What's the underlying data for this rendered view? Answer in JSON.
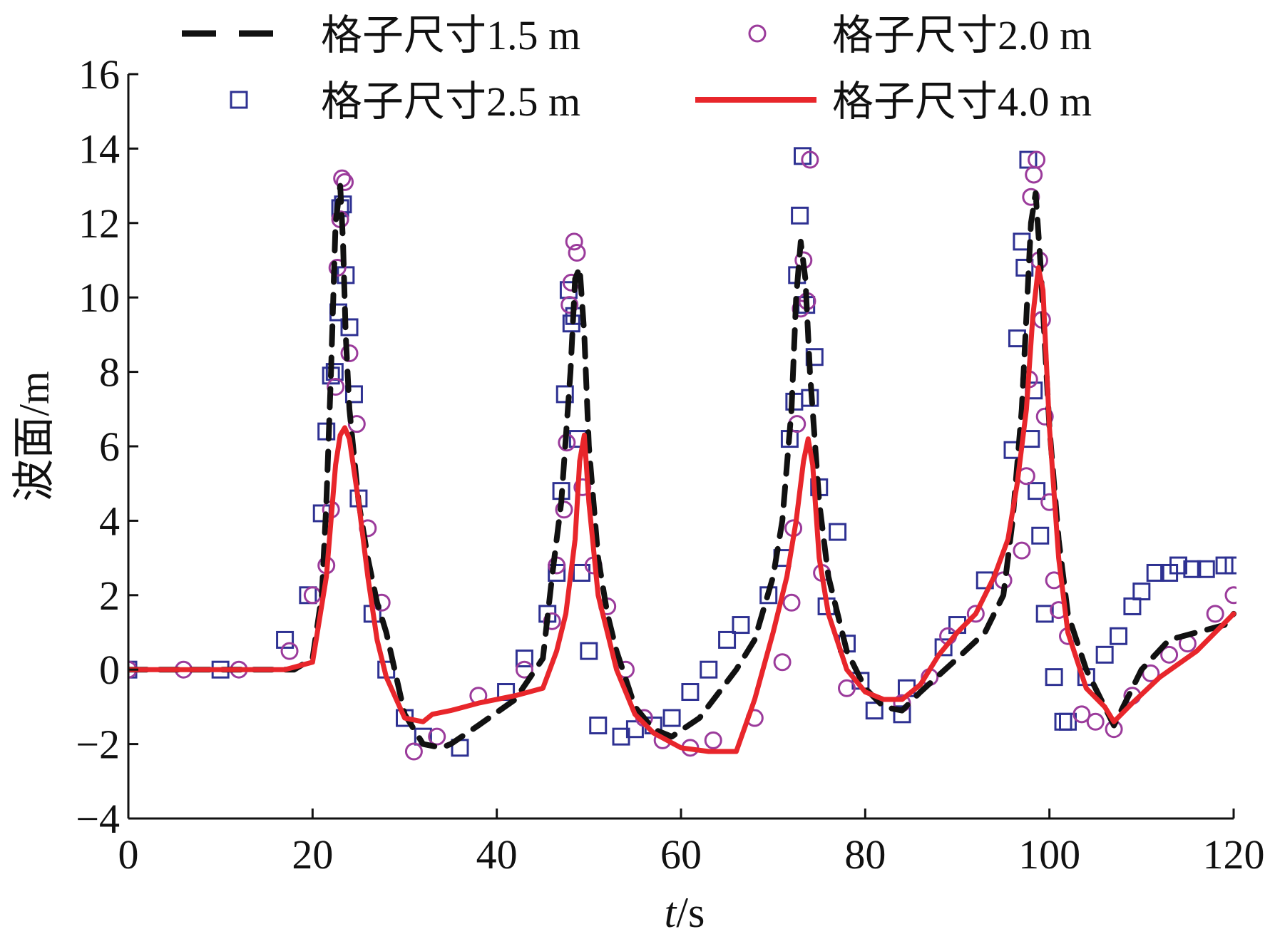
{
  "chart_data": {
    "type": "line",
    "xlabel": "t/s",
    "ylabel": "波面/m",
    "xlim": [
      0,
      120
    ],
    "ylim": [
      -4,
      16
    ],
    "xticks": [
      0,
      20,
      40,
      60,
      80,
      100,
      120
    ],
    "yticks": [
      -4,
      -2,
      0,
      2,
      4,
      6,
      8,
      10,
      12,
      14,
      16
    ],
    "legend": "top",
    "grid": false,
    "series": [
      {
        "name": "格子尺寸1.5 m",
        "style": "dashed",
        "color": "#111111",
        "x": [
          0,
          10,
          18,
          20,
          21,
          21.5,
          22,
          22.5,
          23,
          23.3,
          23.6,
          24,
          25,
          26,
          27,
          28,
          30,
          32,
          34,
          35,
          38,
          42,
          45,
          46,
          47,
          48,
          48.5,
          49,
          49.5,
          50,
          51,
          52,
          53,
          55,
          57,
          59,
          62,
          66,
          68,
          70,
          71,
          72,
          72.5,
          73,
          73.5,
          74,
          75,
          76,
          78,
          80,
          82,
          84,
          86,
          90,
          93,
          95,
          96,
          97,
          97.5,
          98,
          98.5,
          99,
          100,
          101,
          102,
          104,
          107,
          110,
          113,
          116,
          119,
          120
        ],
        "y": [
          0,
          0,
          0,
          0.3,
          2.0,
          4.5,
          8.0,
          12.0,
          13.0,
          11.5,
          9.0,
          7.0,
          4.5,
          3.0,
          1.8,
          1.0,
          -1.2,
          -2.0,
          -2.1,
          -2.0,
          -1.5,
          -0.8,
          0.3,
          2.5,
          4.5,
          8.0,
          10.5,
          10.8,
          9.0,
          6.0,
          3.0,
          1.5,
          0.5,
          -1.0,
          -1.6,
          -1.8,
          -1.3,
          0,
          0.8,
          2.5,
          4.0,
          7.0,
          10.0,
          11.5,
          10.5,
          8.0,
          4.5,
          2.5,
          0.5,
          -0.5,
          -1.0,
          -1.1,
          -0.6,
          0.3,
          1.0,
          2.0,
          4.0,
          7.0,
          9.5,
          12.0,
          12.8,
          11.0,
          6.5,
          3.5,
          1.5,
          0,
          -1.5,
          0,
          0.8,
          1.0,
          1.2,
          1.5
        ]
      },
      {
        "name": "格子尺寸2.0 m",
        "style": "markers",
        "marker": "circle",
        "color": "#9b3b9b",
        "x": [
          0,
          6,
          12,
          17.5,
          20,
          21.5,
          22,
          22.5,
          22.7,
          23,
          23.2,
          23.5,
          24,
          24.8,
          26,
          27.5,
          31,
          33.5,
          38,
          43,
          46,
          46.5,
          47.3,
          47.6,
          47.9,
          48.1,
          48.4,
          48.7,
          49.3,
          50.5,
          52,
          54,
          56,
          58,
          61,
          63.5,
          68,
          71,
          72,
          72.2,
          72.6,
          73,
          73.3,
          73.7,
          74,
          75.3,
          78,
          84,
          87,
          89,
          92,
          95,
          97,
          97.5,
          97.8,
          98,
          98.3,
          98.6,
          98.9,
          99.2,
          99.5,
          100,
          100.5,
          101,
          102,
          103.5,
          105,
          107,
          109,
          111,
          113,
          115,
          118,
          120
        ],
        "y": [
          0,
          0,
          0,
          0.5,
          2.0,
          2.8,
          4.3,
          7.6,
          10.8,
          12.1,
          13.2,
          13.1,
          8.5,
          6.6,
          3.8,
          1.8,
          -2.2,
          -1.8,
          -0.7,
          0,
          1.3,
          2.8,
          4.3,
          6.1,
          9.8,
          10.4,
          11.5,
          11.2,
          4.9,
          2.8,
          1.7,
          0,
          -1.3,
          -1.9,
          -2.1,
          -1.9,
          -1.3,
          0.2,
          1.8,
          3.8,
          6.6,
          9.7,
          11.0,
          9.9,
          13.7,
          2.6,
          -0.5,
          -0.9,
          -0.2,
          0.9,
          1.5,
          2.4,
          3.2,
          5.2,
          7.8,
          12.7,
          13.3,
          13.7,
          11.0,
          9.4,
          6.8,
          4.5,
          2.4,
          1.6,
          0.9,
          -1.2,
          -1.4,
          -1.6,
          -0.7,
          -0.1,
          0.4,
          0.7,
          1.5,
          2.0
        ]
      },
      {
        "name": "格子尺寸2.5 m",
        "style": "markers",
        "marker": "square",
        "color": "#2e3192",
        "x": [
          0,
          10,
          17,
          19.5,
          21,
          21.5,
          22,
          22.4,
          22.8,
          23,
          23.3,
          23.6,
          24,
          24.5,
          25,
          26.5,
          28,
          30,
          32,
          36,
          41,
          43,
          45.5,
          46.5,
          47,
          47.4,
          47.8,
          48.1,
          48.4,
          48.8,
          49.2,
          50,
          51,
          53.5,
          55,
          57,
          59,
          61,
          63,
          65,
          66.5,
          69.5,
          71,
          71.8,
          72.3,
          72.6,
          72.9,
          73.2,
          73.6,
          74,
          74.5,
          75,
          75.8,
          77,
          78,
          79.5,
          81,
          84,
          84.5,
          88.5,
          90,
          93,
          96,
          96.5,
          97,
          97.3,
          97.7,
          98,
          98.3,
          98.6,
          99,
          99.5,
          100.5,
          101.5,
          102,
          104,
          106,
          107.5,
          109,
          110,
          111.5,
          113,
          114,
          115.5,
          117,
          119,
          120
        ],
        "y": [
          0,
          0,
          0.8,
          2.0,
          4.2,
          6.4,
          7.9,
          8.0,
          9.6,
          12.4,
          12.5,
          10.6,
          9.2,
          7.4,
          4.6,
          1.5,
          0,
          -1.3,
          -1.8,
          -2.1,
          -0.6,
          0.3,
          1.5,
          2.6,
          4.8,
          7.4,
          10.2,
          9.3,
          9.5,
          6.2,
          2.6,
          0.5,
          -1.5,
          -1.8,
          -1.6,
          -1.5,
          -1.3,
          -0.6,
          0,
          0.8,
          1.2,
          2.0,
          3.0,
          6.2,
          7.2,
          10.6,
          12.2,
          13.8,
          9.8,
          7.3,
          8.4,
          4.9,
          1.7,
          3.7,
          0.7,
          -0.3,
          -1.1,
          -1.2,
          -0.5,
          0.6,
          1.2,
          2.4,
          5.9,
          8.9,
          11.5,
          10.8,
          13.7,
          6.2,
          7.5,
          4.8,
          3.6,
          1.5,
          -0.2,
          -1.4,
          -1.4,
          -0.2,
          0.4,
          0.9,
          1.7,
          2.1,
          2.6,
          2.6,
          2.8,
          2.7,
          2.7,
          2.8,
          2.8
        ],
        "y_note": "approximate"
      },
      {
        "name": "格子尺寸4.0 m",
        "style": "solid",
        "color": "#e8262b",
        "x": [
          0,
          10,
          17,
          20,
          21.5,
          22.5,
          23,
          23.5,
          24,
          25,
          26,
          27,
          28,
          30,
          32,
          33,
          35,
          38,
          42,
          45,
          46.5,
          47.5,
          48.5,
          49,
          49.5,
          50,
          51,
          53,
          55,
          57,
          60,
          63,
          66,
          68,
          70,
          71.5,
          72.5,
          73.3,
          73.8,
          74.3,
          75,
          76,
          78,
          80,
          82,
          84,
          86,
          88,
          90,
          92,
          94,
          95.5,
          96.5,
          97.5,
          98.2,
          98.8,
          99.3,
          100,
          101,
          102,
          104,
          106,
          107,
          109,
          112,
          116,
          120
        ],
        "y": [
          0,
          0,
          0,
          0.2,
          2.5,
          5.5,
          6.3,
          6.5,
          6.2,
          4.5,
          2.5,
          0.8,
          -0.2,
          -1.3,
          -1.4,
          -1.2,
          -1.1,
          -0.9,
          -0.7,
          -0.5,
          0.5,
          1.5,
          3.5,
          5.6,
          6.3,
          4.5,
          2.0,
          0,
          -1.2,
          -1.7,
          -2.1,
          -2.2,
          -2.2,
          -0.8,
          1.0,
          2.5,
          4.0,
          5.6,
          6.2,
          5.5,
          3.0,
          1.5,
          0,
          -0.6,
          -0.8,
          -0.8,
          -0.4,
          0.4,
          1.0,
          1.5,
          2.5,
          3.5,
          5.0,
          7.0,
          9.5,
          10.8,
          10.2,
          6.5,
          3.0,
          1.0,
          -0.5,
          -1.0,
          -1.4,
          -0.9,
          -0.2,
          0.5,
          1.5
        ]
      }
    ]
  }
}
